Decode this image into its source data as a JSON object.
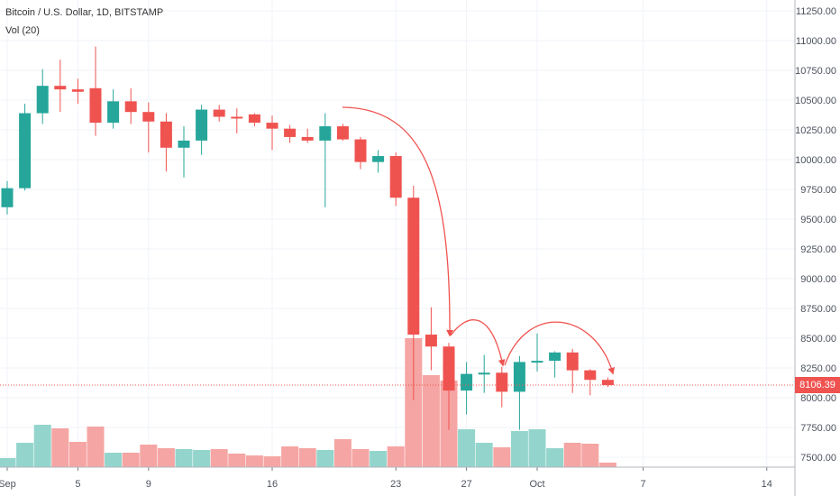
{
  "legend": {
    "title": "Bitcoin / U.S. Dollar, 1D, BITSTAMP",
    "volume": "Vol (20)"
  },
  "last_price_label": "8106.39",
  "colors": {
    "up": "#26a69a",
    "down": "#ef5350",
    "up_volume": "#93d5cc",
    "down_volume": "#f5a5a3",
    "price_line": "#ef5350",
    "grid": "#f0f3fa",
    "axis_text": "#4c525e"
  },
  "chart_data": {
    "type": "candlestick",
    "title": "Bitcoin / U.S. Dollar, 1D, BITSTAMP",
    "y_axis_position": "right",
    "ylim": [
      7400,
      11300
    ],
    "y_ticks": [
      "11250.00",
      "11000.00",
      "10750.00",
      "10500.00",
      "10250.00",
      "10000.00",
      "9750.00",
      "9500.00",
      "9250.00",
      "9000.00",
      "8750.00",
      "8500.00",
      "8250.00",
      "8000.00",
      "7750.00",
      "7500.00"
    ],
    "x_tick_labels": [
      "Sep",
      "5",
      "9",
      "16",
      "23",
      "27",
      "Oct",
      "7",
      "14"
    ],
    "grid": true,
    "last_price": 8106.39,
    "candles": [
      {
        "date": "2019-09-01",
        "open": 9600,
        "high": 9820,
        "low": 9540,
        "close": 9760
      },
      {
        "date": "2019-09-02",
        "open": 9760,
        "high": 10470,
        "low": 9740,
        "close": 10390
      },
      {
        "date": "2019-09-03",
        "open": 10390,
        "high": 10760,
        "low": 10300,
        "close": 10620
      },
      {
        "date": "2019-09-04",
        "open": 10620,
        "high": 10840,
        "low": 10400,
        "close": 10590
      },
      {
        "date": "2019-09-05",
        "open": 10590,
        "high": 10680,
        "low": 10470,
        "close": 10570
      },
      {
        "date": "2019-09-06",
        "open": 10600,
        "high": 10950,
        "low": 10200,
        "close": 10310
      },
      {
        "date": "2019-09-07",
        "open": 10310,
        "high": 10590,
        "low": 10260,
        "close": 10490
      },
      {
        "date": "2019-09-08",
        "open": 10490,
        "high": 10600,
        "low": 10300,
        "close": 10400
      },
      {
        "date": "2019-09-09",
        "open": 10400,
        "high": 10480,
        "low": 10060,
        "close": 10320
      },
      {
        "date": "2019-09-10",
        "open": 10320,
        "high": 10390,
        "low": 9900,
        "close": 10100
      },
      {
        "date": "2019-09-11",
        "open": 10100,
        "high": 10280,
        "low": 9850,
        "close": 10160
      },
      {
        "date": "2019-09-12",
        "open": 10160,
        "high": 10460,
        "low": 10040,
        "close": 10420
      },
      {
        "date": "2019-09-13",
        "open": 10420,
        "high": 10460,
        "low": 10320,
        "close": 10360
      },
      {
        "date": "2019-09-14",
        "open": 10360,
        "high": 10430,
        "low": 10220,
        "close": 10350
      },
      {
        "date": "2019-09-15",
        "open": 10380,
        "high": 10390,
        "low": 10280,
        "close": 10310
      },
      {
        "date": "2019-09-16",
        "open": 10310,
        "high": 10370,
        "low": 10080,
        "close": 10260
      },
      {
        "date": "2019-09-17",
        "open": 10260,
        "high": 10290,
        "low": 10140,
        "close": 10190
      },
      {
        "date": "2019-09-18",
        "open": 10190,
        "high": 10260,
        "low": 10140,
        "close": 10160
      },
      {
        "date": "2019-09-19",
        "open": 10160,
        "high": 10390,
        "low": 9600,
        "close": 10280
      },
      {
        "date": "2019-09-20",
        "open": 10280,
        "high": 10300,
        "low": 10160,
        "close": 10170
      },
      {
        "date": "2019-09-21",
        "open": 10170,
        "high": 10190,
        "low": 9920,
        "close": 9980
      },
      {
        "date": "2019-09-22",
        "open": 9980,
        "high": 10080,
        "low": 9890,
        "close": 10030
      },
      {
        "date": "2019-09-23",
        "open": 10030,
        "high": 10060,
        "low": 9610,
        "close": 9680
      },
      {
        "date": "2019-09-24",
        "open": 9680,
        "high": 9780,
        "low": 7980,
        "close": 8530
      },
      {
        "date": "2019-09-25",
        "open": 8530,
        "high": 8760,
        "low": 8230,
        "close": 8430
      },
      {
        "date": "2019-09-26",
        "open": 8430,
        "high": 8460,
        "low": 7730,
        "close": 8060
      },
      {
        "date": "2019-09-27",
        "open": 8060,
        "high": 8300,
        "low": 7860,
        "close": 8200
      },
      {
        "date": "2019-09-28",
        "open": 8200,
        "high": 8360,
        "low": 8040,
        "close": 8210
      },
      {
        "date": "2019-09-29",
        "open": 8210,
        "high": 8260,
        "low": 7920,
        "close": 8050
      },
      {
        "date": "2019-09-30",
        "open": 8050,
        "high": 8350,
        "low": 7730,
        "close": 8300
      },
      {
        "date": "2019-10-01",
        "open": 8300,
        "high": 8540,
        "low": 8220,
        "close": 8310
      },
      {
        "date": "2019-10-02",
        "open": 8310,
        "high": 8390,
        "low": 8170,
        "close": 8380
      },
      {
        "date": "2019-10-03",
        "open": 8380,
        "high": 8410,
        "low": 8040,
        "close": 8230
      },
      {
        "date": "2019-10-04",
        "open": 8230,
        "high": 8240,
        "low": 8020,
        "close": 8150
      },
      {
        "date": "2019-10-05",
        "open": 8150,
        "high": 8170,
        "low": 8090,
        "close": 8106.39
      }
    ],
    "volume": [
      10,
      27,
      47,
      43,
      28,
      45,
      16,
      16,
      25,
      21,
      20,
      19,
      20,
      15,
      13,
      12,
      23,
      21,
      19,
      31,
      20,
      18,
      23,
      143,
      102,
      96,
      42,
      27,
      22,
      40,
      42,
      21,
      27,
      26,
      5
    ]
  }
}
